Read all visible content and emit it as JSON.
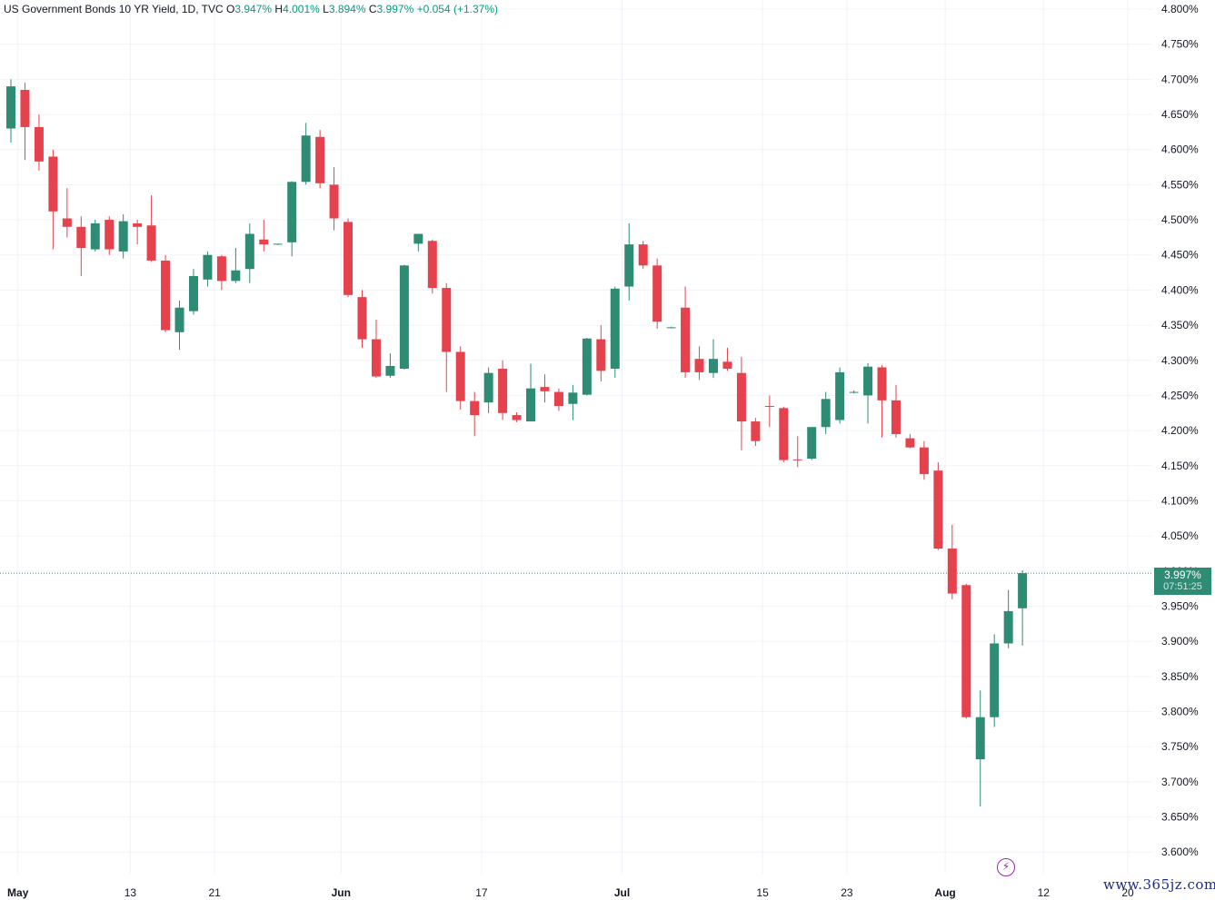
{
  "legend": {
    "symbol": "US Government Bonds 10 YR Yield, 1D, TVC",
    "o_label": "O",
    "o_value": "3.947%",
    "h_label": "H",
    "h_value": "4.001%",
    "l_label": "L",
    "l_value": "3.894%",
    "c_label": "C",
    "c_value": "3.997%",
    "change": "+0.054 (+1.37%)"
  },
  "price_badge": {
    "price": "3.997%",
    "countdown": "07:51:25"
  },
  "watermark": "www.365jz.com",
  "colors": {
    "up": "#2e8b74",
    "down": "#e5424d",
    "grid": "#f0f3fa",
    "text": "#131722",
    "accent": "#089981"
  },
  "chart_data": {
    "type": "candlestick",
    "title": "US Government Bonds 10 YR Yield, 1D, TVC",
    "ylim": [
      3.58,
      4.81
    ],
    "y_ticks": [
      "4.800%",
      "4.750%",
      "4.700%",
      "4.650%",
      "4.600%",
      "4.550%",
      "4.500%",
      "4.450%",
      "4.400%",
      "4.350%",
      "4.300%",
      "4.250%",
      "4.200%",
      "4.150%",
      "4.100%",
      "4.050%",
      "4.000%",
      "3.950%",
      "3.900%",
      "3.850%",
      "3.800%",
      "3.750%",
      "3.700%",
      "3.650%",
      "3.600%"
    ],
    "x_ticks": [
      {
        "label": "May",
        "index": 0.5
      },
      {
        "label": "13",
        "index": 8.5
      },
      {
        "label": "21",
        "index": 14.5
      },
      {
        "label": "Jun",
        "index": 23.5
      },
      {
        "label": "17",
        "index": 33.5
      },
      {
        "label": "Jul",
        "index": 43.5
      },
      {
        "label": "15",
        "index": 53.5
      },
      {
        "label": "23",
        "index": 59.5
      },
      {
        "label": "Aug",
        "index": 66.5
      },
      {
        "label": "12",
        "index": 73.5
      },
      {
        "label": "20",
        "index": 79.5
      }
    ],
    "grid": true,
    "last_price": 3.997,
    "candles": [
      {
        "o": 4.63,
        "h": 4.7,
        "l": 4.61,
        "c": 4.69
      },
      {
        "o": 4.685,
        "h": 4.695,
        "l": 4.585,
        "c": 4.632
      },
      {
        "o": 4.632,
        "h": 4.65,
        "l": 4.57,
        "c": 4.583
      },
      {
        "o": 4.59,
        "h": 4.6,
        "l": 4.458,
        "c": 4.512
      },
      {
        "o": 4.502,
        "h": 4.545,
        "l": 4.475,
        "c": 4.49
      },
      {
        "o": 4.49,
        "h": 4.505,
        "l": 4.42,
        "c": 4.46
      },
      {
        "o": 4.458,
        "h": 4.5,
        "l": 4.455,
        "c": 4.495
      },
      {
        "o": 4.5,
        "h": 4.505,
        "l": 4.45,
        "c": 4.458
      },
      {
        "o": 4.455,
        "h": 4.508,
        "l": 4.445,
        "c": 4.498
      },
      {
        "o": 4.495,
        "h": 4.5,
        "l": 4.465,
        "c": 4.49
      },
      {
        "o": 4.492,
        "h": 4.535,
        "l": 4.44,
        "c": 4.442
      },
      {
        "o": 4.442,
        "h": 4.45,
        "l": 4.34,
        "c": 4.343
      },
      {
        "o": 4.34,
        "h": 4.385,
        "l": 4.315,
        "c": 4.375
      },
      {
        "o": 4.37,
        "h": 4.43,
        "l": 4.365,
        "c": 4.42
      },
      {
        "o": 4.415,
        "h": 4.455,
        "l": 4.405,
        "c": 4.45
      },
      {
        "o": 4.448,
        "h": 4.45,
        "l": 4.4,
        "c": 4.413
      },
      {
        "o": 4.413,
        "h": 4.46,
        "l": 4.41,
        "c": 4.428
      },
      {
        "o": 4.43,
        "h": 4.495,
        "l": 4.41,
        "c": 4.48
      },
      {
        "o": 4.472,
        "h": 4.5,
        "l": 4.455,
        "c": 4.465
      },
      {
        "o": 4.465,
        "h": 4.466,
        "l": 4.464,
        "c": 4.466
      },
      {
        "o": 4.468,
        "h": 4.555,
        "l": 4.448,
        "c": 4.554
      },
      {
        "o": 4.554,
        "h": 4.638,
        "l": 4.55,
        "c": 4.62
      },
      {
        "o": 4.618,
        "h": 4.628,
        "l": 4.545,
        "c": 4.552
      },
      {
        "o": 4.55,
        "h": 4.575,
        "l": 4.485,
        "c": 4.502
      },
      {
        "o": 4.497,
        "h": 4.502,
        "l": 4.39,
        "c": 4.393
      },
      {
        "o": 4.39,
        "h": 4.4,
        "l": 4.318,
        "c": 4.33
      },
      {
        "o": 4.33,
        "h": 4.358,
        "l": 4.275,
        "c": 4.277
      },
      {
        "o": 4.278,
        "h": 4.31,
        "l": 4.275,
        "c": 4.292
      },
      {
        "o": 4.288,
        "h": 4.436,
        "l": 4.287,
        "c": 4.435
      },
      {
        "o": 4.466,
        "h": 4.48,
        "l": 4.455,
        "c": 4.48
      },
      {
        "o": 4.47,
        "h": 4.472,
        "l": 4.395,
        "c": 4.403
      },
      {
        "o": 4.403,
        "h": 4.41,
        "l": 4.255,
        "c": 4.312
      },
      {
        "o": 4.312,
        "h": 4.32,
        "l": 4.23,
        "c": 4.242
      },
      {
        "o": 4.242,
        "h": 4.255,
        "l": 4.192,
        "c": 4.222
      },
      {
        "o": 4.24,
        "h": 4.29,
        "l": 4.225,
        "c": 4.282
      },
      {
        "o": 4.288,
        "h": 4.3,
        "l": 4.215,
        "c": 4.225
      },
      {
        "o": 4.222,
        "h": 4.226,
        "l": 4.212,
        "c": 4.215
      },
      {
        "o": 4.213,
        "h": 4.295,
        "l": 4.213,
        "c": 4.26
      },
      {
        "o": 4.262,
        "h": 4.28,
        "l": 4.24,
        "c": 4.256
      },
      {
        "o": 4.255,
        "h": 4.26,
        "l": 4.228,
        "c": 4.235
      },
      {
        "o": 4.238,
        "h": 4.265,
        "l": 4.215,
        "c": 4.254
      },
      {
        "o": 4.251,
        "h": 4.332,
        "l": 4.25,
        "c": 4.331
      },
      {
        "o": 4.33,
        "h": 4.35,
        "l": 4.27,
        "c": 4.285
      },
      {
        "o": 4.288,
        "h": 4.405,
        "l": 4.275,
        "c": 4.402
      },
      {
        "o": 4.405,
        "h": 4.495,
        "l": 4.385,
        "c": 4.465
      },
      {
        "o": 4.465,
        "h": 4.47,
        "l": 4.43,
        "c": 4.435
      },
      {
        "o": 4.435,
        "h": 4.445,
        "l": 4.345,
        "c": 4.355
      },
      {
        "o": 4.347,
        "h": 4.348,
        "l": 4.346,
        "c": 4.347
      },
      {
        "o": 4.375,
        "h": 4.405,
        "l": 4.275,
        "c": 4.283
      },
      {
        "o": 4.302,
        "h": 4.32,
        "l": 4.272,
        "c": 4.283
      },
      {
        "o": 4.282,
        "h": 4.33,
        "l": 4.275,
        "c": 4.302
      },
      {
        "o": 4.298,
        "h": 4.318,
        "l": 4.285,
        "c": 4.288
      },
      {
        "o": 4.282,
        "h": 4.305,
        "l": 4.172,
        "c": 4.213
      },
      {
        "o": 4.213,
        "h": 4.218,
        "l": 4.178,
        "c": 4.185
      },
      {
        "o": 4.235,
        "h": 4.25,
        "l": 4.205,
        "c": 4.234
      },
      {
        "o": 4.232,
        "h": 4.234,
        "l": 4.155,
        "c": 4.158
      },
      {
        "o": 4.159,
        "h": 4.192,
        "l": 4.148,
        "c": 4.158
      },
      {
        "o": 4.16,
        "h": 4.205,
        "l": 4.158,
        "c": 4.205
      },
      {
        "o": 4.205,
        "h": 4.255,
        "l": 4.195,
        "c": 4.245
      },
      {
        "o": 4.215,
        "h": 4.29,
        "l": 4.21,
        "c": 4.283
      },
      {
        "o": 4.255,
        "h": 4.257,
        "l": 4.253,
        "c": 4.255
      },
      {
        "o": 4.25,
        "h": 4.296,
        "l": 4.21,
        "c": 4.291
      },
      {
        "o": 4.29,
        "h": 4.293,
        "l": 4.19,
        "c": 4.243
      },
      {
        "o": 4.243,
        "h": 4.265,
        "l": 4.19,
        "c": 4.195
      },
      {
        "o": 4.189,
        "h": 4.195,
        "l": 4.175,
        "c": 4.176
      },
      {
        "o": 4.176,
        "h": 4.185,
        "l": 4.13,
        "c": 4.138
      },
      {
        "o": 4.143,
        "h": 4.155,
        "l": 4.03,
        "c": 4.032
      },
      {
        "o": 4.032,
        "h": 4.066,
        "l": 3.96,
        "c": 3.968
      },
      {
        "o": 3.98,
        "h": 3.982,
        "l": 3.79,
        "c": 3.792
      },
      {
        "o": 3.732,
        "h": 3.83,
        "l": 3.665,
        "c": 3.792
      },
      {
        "o": 3.792,
        "h": 3.91,
        "l": 3.778,
        "c": 3.897
      },
      {
        "o": 3.897,
        "h": 3.973,
        "l": 3.89,
        "c": 3.943
      },
      {
        "o": 3.947,
        "h": 4.001,
        "l": 3.894,
        "c": 3.997
      }
    ]
  }
}
